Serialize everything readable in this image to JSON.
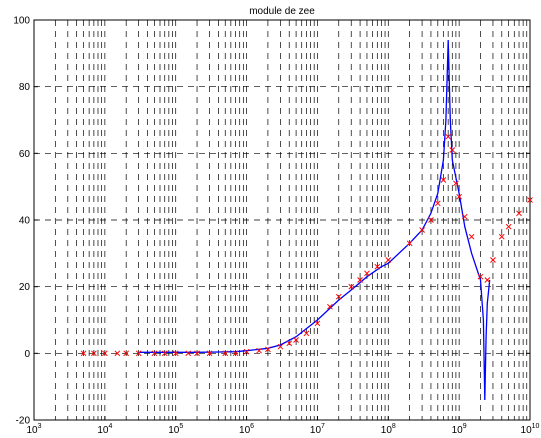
{
  "chart_data": {
    "type": "line",
    "title": "module de zee",
    "xlabel": "",
    "ylabel": "",
    "x_scale": "log",
    "xlim": [
      1000,
      10000000000
    ],
    "ylim": [
      -20,
      100
    ],
    "grid": "on (dashed)",
    "x_tick_labels": [
      {
        "base": "10",
        "exp": "3"
      },
      {
        "base": "10",
        "exp": "4"
      },
      {
        "base": "10",
        "exp": "5"
      },
      {
        "base": "10",
        "exp": "6"
      },
      {
        "base": "10",
        "exp": "7"
      },
      {
        "base": "10",
        "exp": "8"
      },
      {
        "base": "10",
        "exp": "9"
      },
      {
        "base": "10",
        "exp": "10"
      }
    ],
    "y_tick_labels": [
      "-20",
      "0",
      "20",
      "40",
      "60",
      "80",
      "100"
    ],
    "series": [
      {
        "style": "solid-line",
        "color": "#0000ff",
        "x": [
          30000,
          50000,
          100000,
          200000,
          400000,
          700000,
          1000000,
          2000000,
          3000000,
          5000000,
          10000000,
          20000000,
          30000000,
          50000000,
          80000000,
          100000000,
          200000000,
          300000000,
          400000000,
          500000000,
          600000000,
          650000000,
          700000000,
          750000000,
          800000000,
          1000000000,
          1200000000,
          1500000000,
          2000000000,
          2200000000,
          2300000000,
          2400000000,
          2500000000,
          2700000000
        ],
        "y": [
          0.3,
          0.3,
          0.3,
          0.3,
          0.4,
          0.5,
          0.8,
          1.5,
          2.5,
          5,
          10,
          16,
          19,
          23,
          26,
          27,
          33,
          37,
          42,
          48,
          58,
          70,
          94,
          70,
          58,
          48,
          38,
          30,
          22,
          10,
          -14,
          5,
          15,
          22
        ]
      },
      {
        "style": "x-markers",
        "color": "#ff0000",
        "x": [
          5000,
          7000,
          10000,
          15000,
          20000,
          30000,
          50000,
          70000,
          100000,
          150000,
          200000,
          300000,
          500000,
          700000,
          1000000,
          1500000,
          2000000,
          3000000,
          4000000,
          5000000,
          7000000,
          10000000,
          15000000,
          20000000,
          30000000,
          40000000,
          50000000,
          70000000,
          100000000,
          200000000,
          300000000,
          400000000,
          500000000,
          600000000,
          700000000,
          800000000,
          900000000,
          1000000000,
          1200000000,
          1500000000,
          2000000000,
          2500000000,
          3000000000,
          4000000000,
          5000000000,
          7000000000,
          10000000000
        ],
        "y": [
          0,
          0,
          0,
          0,
          0,
          0,
          0,
          0,
          0,
          0,
          0,
          0,
          0,
          0,
          0.5,
          0.8,
          1.2,
          2,
          3,
          4,
          6,
          9,
          14,
          17,
          20,
          22,
          24,
          26,
          28,
          33,
          37,
          40,
          45,
          52,
          65,
          61,
          51,
          47,
          41,
          35,
          23,
          22,
          28,
          35,
          38,
          42,
          46
        ]
      }
    ]
  }
}
